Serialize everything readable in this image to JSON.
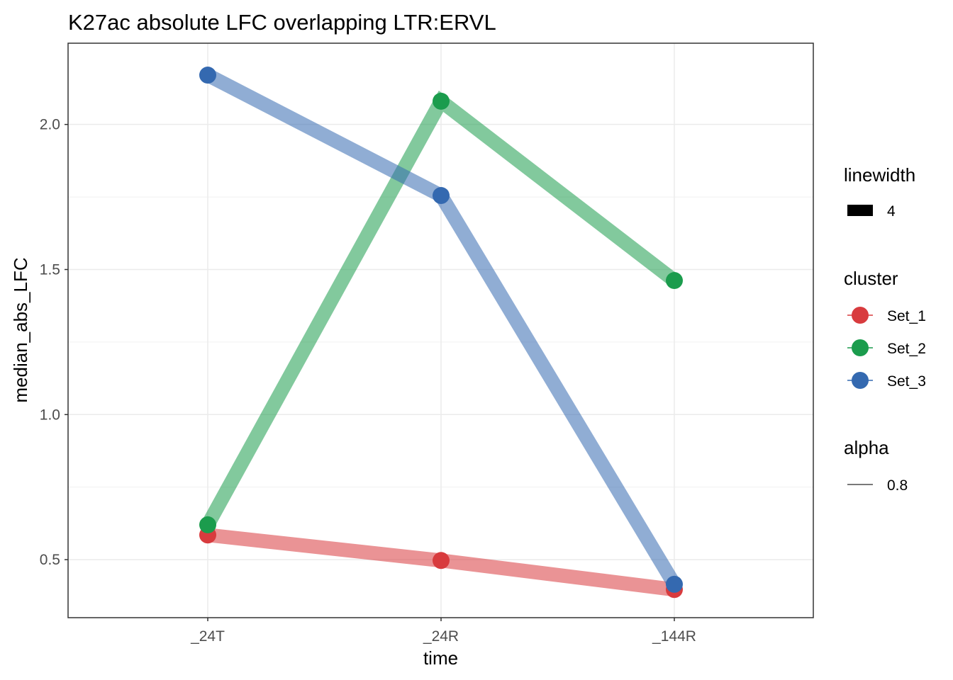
{
  "chart_data": {
    "type": "line",
    "title": "K27ac absolute LFC overlapping LTR:ERVL",
    "xlabel": "time",
    "ylabel": "median_abs_LFC",
    "categories": [
      "_24T",
      "_24R",
      "_144R"
    ],
    "ylim": [
      0.3,
      2.28
    ],
    "y_ticks": [
      0.5,
      1.0,
      1.5,
      2.0
    ],
    "y_tick_labels": [
      "0.5",
      "1.0",
      "1.5",
      "2.0"
    ],
    "grid": true,
    "legend_position": "right",
    "series": [
      {
        "name": "Set_1",
        "color": "#d83b3e",
        "values": [
          0.585,
          0.497,
          0.397
        ]
      },
      {
        "name": "Set_2",
        "color": "#1b9c4d",
        "values": [
          0.62,
          2.08,
          1.462
        ]
      },
      {
        "name": "Set_3",
        "color": "#3469b0",
        "values": [
          2.17,
          1.755,
          0.415
        ]
      }
    ],
    "legend": {
      "linewidth_title": "linewidth",
      "linewidth_value": "4",
      "cluster_title": "cluster",
      "alpha_title": "alpha",
      "alpha_value": "0.8"
    }
  }
}
